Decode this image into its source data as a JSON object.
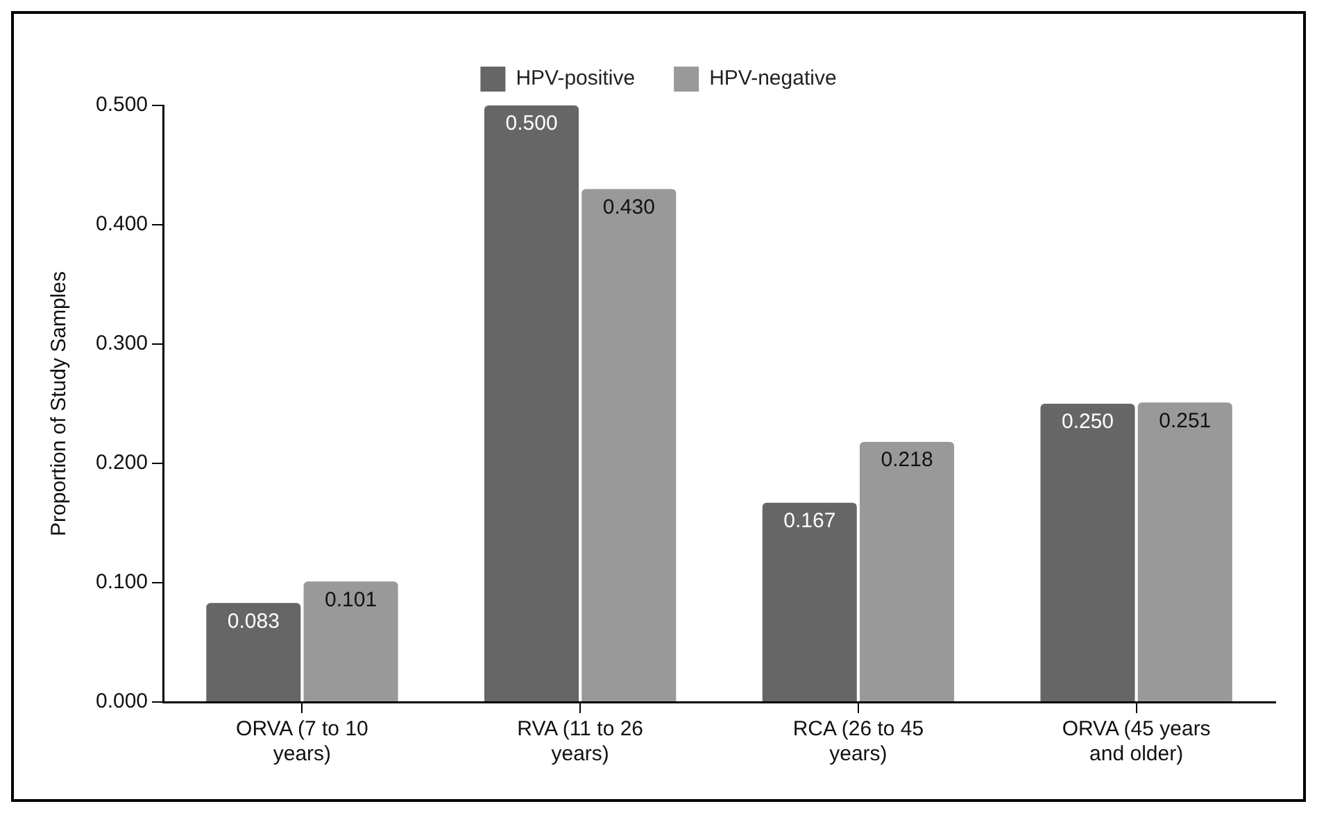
{
  "chart_data": {
    "type": "bar",
    "ylabel": "Proportion of Study Samples",
    "categories": [
      "ORVA (7 to 10 years)",
      "RVA (11 to 26 years)",
      "RCA (26 to 45 years)",
      "ORVA (45 years and older)"
    ],
    "series": [
      {
        "name": "HPV-positive",
        "color": "#666666",
        "values": [
          0.083,
          0.5,
          0.167,
          0.25
        ],
        "value_labels": [
          "0.083",
          "0.500",
          "0.167",
          "0.250"
        ]
      },
      {
        "name": "HPV-negative",
        "color": "#999999",
        "values": [
          0.101,
          0.43,
          0.218,
          0.251
        ],
        "value_labels": [
          "0.101",
          "0.430",
          "0.218",
          "0.251"
        ]
      }
    ],
    "ylim": [
      0,
      0.5
    ],
    "yticks": [
      {
        "value": 0,
        "label": "0.000"
      },
      {
        "value": 0.1,
        "label": "0.100"
      },
      {
        "value": 0.2,
        "label": "0.200"
      },
      {
        "value": 0.3,
        "label": "0.300"
      },
      {
        "value": 0.4,
        "label": "0.400"
      },
      {
        "value": 0.5,
        "label": "0.500"
      }
    ],
    "grid": false,
    "legend": "top"
  }
}
